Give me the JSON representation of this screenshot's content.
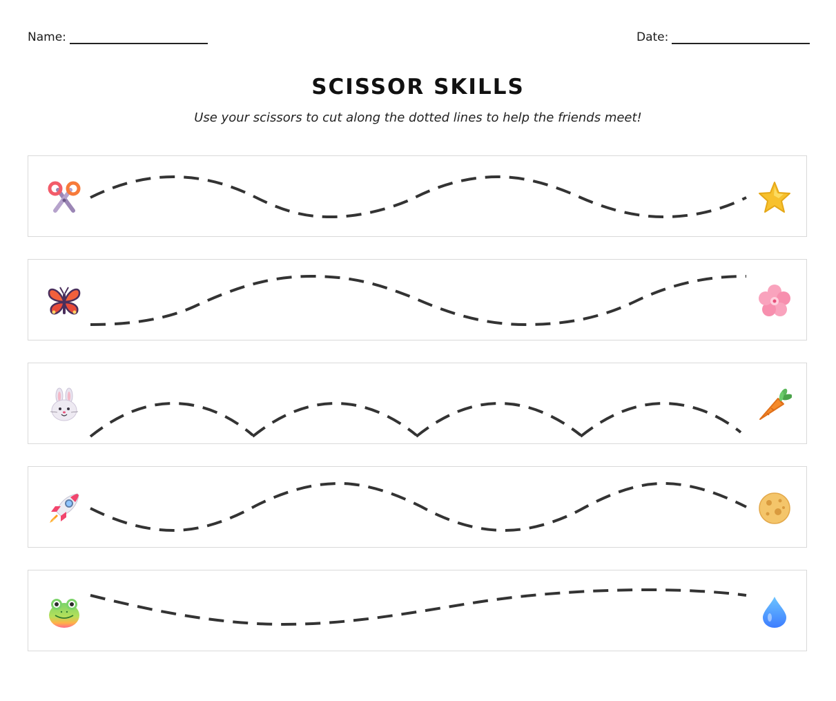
{
  "header": {
    "name_label": "Name:",
    "date_label": "Date:"
  },
  "title": "SCISSOR SKILLS",
  "subtitle": "Use your scissors to cut along the dotted lines to help the friends meet!",
  "colors": {
    "line": "#333333",
    "row_border": "#d9d9d9"
  },
  "rows": [
    {
      "start_icon": "scissors-icon",
      "end_icon": "star-icon",
      "path_style": "wave"
    },
    {
      "start_icon": "butterfly-icon",
      "end_icon": "cherry-blossom-icon",
      "path_style": "wave"
    },
    {
      "start_icon": "rabbit-face-icon",
      "end_icon": "carrot-icon",
      "path_style": "arches"
    },
    {
      "start_icon": "rocket-icon",
      "end_icon": "moon-icon",
      "path_style": "wave"
    },
    {
      "start_icon": "frog-face-icon",
      "end_icon": "droplet-icon",
      "path_style": "gentle-wave"
    }
  ]
}
